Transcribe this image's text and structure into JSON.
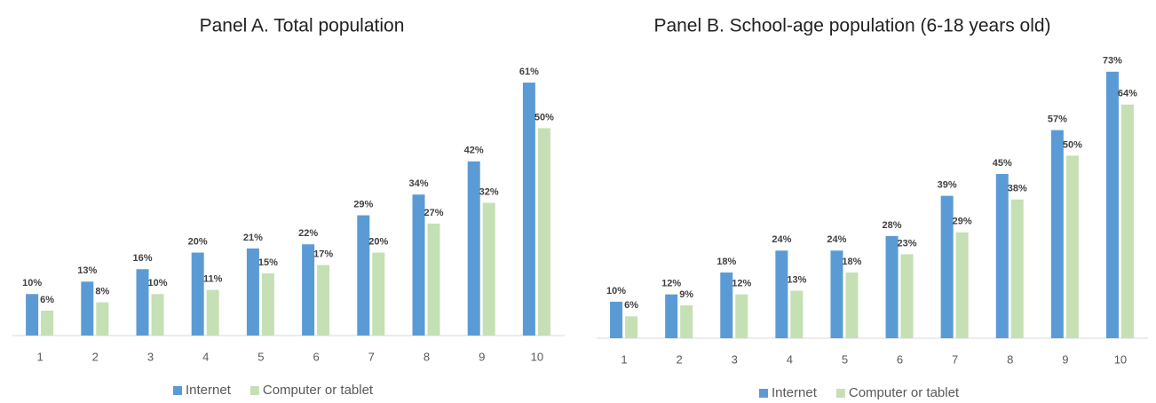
{
  "chart_data": [
    {
      "type": "bar",
      "title": "Panel A. Total population",
      "categories": [
        "1",
        "2",
        "3",
        "4",
        "5",
        "6",
        "7",
        "8",
        "9",
        "10"
      ],
      "series": [
        {
          "name": "Internet",
          "color": "#5b9bd5",
          "values": [
            10,
            13,
            16,
            20,
            21,
            22,
            29,
            34,
            42,
            61
          ],
          "value_labels": [
            "10%",
            "13%",
            "16%",
            "20%",
            "21%",
            "22%",
            "29%",
            "34%",
            "42%",
            "61%"
          ]
        },
        {
          "name": "Computer or tablet",
          "color": "#c5e0b4",
          "values": [
            6,
            8,
            10,
            11,
            15,
            17,
            20,
            27,
            32,
            50
          ],
          "value_labels": [
            "6%",
            "8%",
            "10%",
            "11%",
            "15%",
            "17%",
            "20%",
            "27%",
            "32%",
            "50%"
          ]
        }
      ],
      "ylim": [
        0,
        70
      ]
    },
    {
      "type": "bar",
      "title": "Panel B. School-age population (6-18 years old)",
      "categories": [
        "1",
        "2",
        "3",
        "4",
        "5",
        "6",
        "7",
        "8",
        "9",
        "10"
      ],
      "series": [
        {
          "name": "Internet",
          "color": "#5b9bd5",
          "values": [
            10,
            12,
            18,
            24,
            24,
            28,
            39,
            45,
            57,
            73
          ],
          "value_labels": [
            "10%",
            "12%",
            "18%",
            "24%",
            "24%",
            "28%",
            "39%",
            "45%",
            "57%",
            "73%"
          ]
        },
        {
          "name": "Computer or tablet",
          "color": "#c5e0b4",
          "values": [
            6,
            9,
            12,
            13,
            18,
            23,
            29,
            38,
            50,
            64
          ],
          "value_labels": [
            "6%",
            "9%",
            "12%",
            "13%",
            "18%",
            "23%",
            "29%",
            "38%",
            "50%",
            "64%"
          ]
        }
      ],
      "ylim": [
        0,
        80
      ]
    }
  ]
}
